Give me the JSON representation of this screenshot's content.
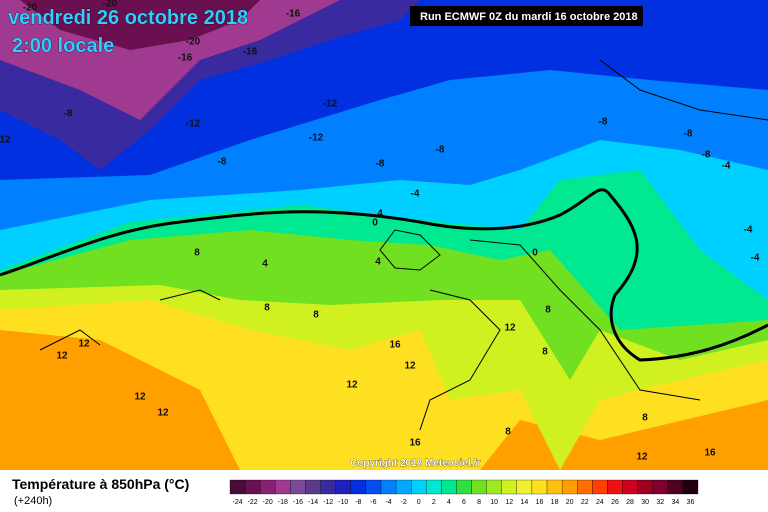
{
  "header": {
    "date": "vendredi 26 octobre 2018",
    "time": "2:00 locale",
    "run": "Run ECMWF 0Z du mardi 16 octobre 2018"
  },
  "copyright": "Copyright 2018 Meteociel.fr",
  "contour_labels": [
    -20,
    -20,
    -20,
    -16,
    -16,
    -16,
    -8,
    12,
    -12,
    -12,
    -12,
    -8,
    -8,
    -8,
    -8,
    -8,
    -8,
    -4,
    4,
    0,
    8,
    4,
    4,
    0,
    8,
    8,
    8,
    12,
    12,
    12,
    16,
    8,
    12,
    12,
    12,
    12,
    16,
    8,
    12,
    16,
    8,
    -4,
    -4,
    -4
  ],
  "legend": {
    "title": "Température à 850hPa (°C)",
    "subtitle": "(+240h)",
    "scale": [
      {
        "value": -24,
        "color": "#4a0a3a"
      },
      {
        "value": -22,
        "color": "#6a1050"
      },
      {
        "value": -20,
        "color": "#8a2070"
      },
      {
        "value": -18,
        "color": "#a03a90"
      },
      {
        "value": -16,
        "color": "#7a4a9a"
      },
      {
        "value": -14,
        "color": "#5a3a8a"
      },
      {
        "value": -12,
        "color": "#3a2aa0"
      },
      {
        "value": -10,
        "color": "#2020c0"
      },
      {
        "value": -8,
        "color": "#0030e0"
      },
      {
        "value": -6,
        "color": "#0050f0"
      },
      {
        "value": -4,
        "color": "#0080ff"
      },
      {
        "value": -2,
        "color": "#00a8ff"
      },
      {
        "value": 0,
        "color": "#00d0ff"
      },
      {
        "value": 2,
        "color": "#00e8d0"
      },
      {
        "value": 4,
        "color": "#00e890"
      },
      {
        "value": 6,
        "color": "#30e040"
      },
      {
        "value": 8,
        "color": "#70e020"
      },
      {
        "value": 10,
        "color": "#a0e820"
      },
      {
        "value": 12,
        "color": "#d0f020"
      },
      {
        "value": 14,
        "color": "#f0f030"
      },
      {
        "value": 16,
        "color": "#ffe020"
      },
      {
        "value": 18,
        "color": "#ffc010"
      },
      {
        "value": 20,
        "color": "#ffa000"
      },
      {
        "value": 22,
        "color": "#ff7000"
      },
      {
        "value": 24,
        "color": "#ff4000"
      },
      {
        "value": 26,
        "color": "#f01010"
      },
      {
        "value": 28,
        "color": "#d00020"
      },
      {
        "value": 30,
        "color": "#a00020"
      },
      {
        "value": 32,
        "color": "#800030"
      },
      {
        "value": 34,
        "color": "#500020"
      },
      {
        "value": 36,
        "color": "#200010"
      }
    ]
  }
}
